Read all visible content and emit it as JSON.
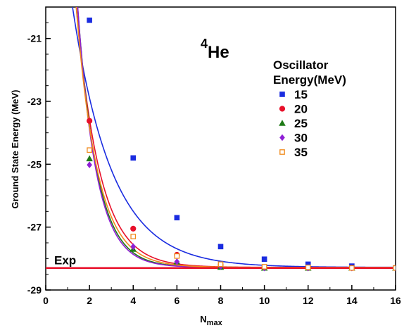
{
  "chart_data": {
    "type": "scatter",
    "title_sup": "4",
    "title_main": "He",
    "xlabel_main": "N",
    "xlabel_sub": "max",
    "ylabel": "Ground State Energy (MeV)",
    "xlim": [
      0,
      16
    ],
    "ylim": [
      -29,
      -20
    ],
    "x_ticks": [
      "0",
      "2",
      "4",
      "6",
      "8",
      "10",
      "12",
      "14",
      "16"
    ],
    "y_ticks": [
      "-21",
      "-23",
      "-25",
      "-27",
      "-29"
    ],
    "legend_title_line1": "Oscillator",
    "legend_title_line2": "Energy(MeV)",
    "legend_position": "top-right",
    "exp_label": "Exp",
    "exp_value": -28.3,
    "exp_color": "#e8102a",
    "series": [
      {
        "name": "15",
        "color": "#1a2ce0",
        "marker": "square",
        "x": [
          2,
          4,
          6,
          8,
          10,
          12,
          14,
          16
        ],
        "y": [
          -20.42,
          -24.8,
          -26.7,
          -27.62,
          -28.02,
          -28.18,
          -28.24,
          -28.3
        ],
        "fit": {
          "a": -28.28,
          "b": 16.3,
          "c": 0.553
        }
      },
      {
        "name": "20",
        "color": "#e8102a",
        "marker": "circle",
        "x": [
          2,
          4,
          6,
          8,
          10,
          12,
          14,
          16
        ],
        "y": [
          -23.62,
          -27.05,
          -27.88,
          -28.2,
          -28.28,
          -28.3,
          -28.3,
          -28.3
        ],
        "fit": {
          "a": -28.28,
          "b": 30.58,
          "c": 0.935
        }
      },
      {
        "name": "25",
        "color": "#1e7a16",
        "marker": "triangle",
        "x": [
          2,
          4,
          6,
          8,
          10,
          12,
          14,
          16
        ],
        "y": [
          -24.82,
          -27.7,
          -28.1,
          -28.27,
          -28.3,
          -28.3,
          -28.3,
          -28.3
        ],
        "fit": {
          "a": -28.28,
          "b": 43.05,
          "c": 1.13
        }
      },
      {
        "name": "30",
        "color": "#8f1fd6",
        "marker": "diamond",
        "x": [
          2,
          4,
          6,
          8,
          10,
          12,
          14,
          16
        ],
        "y": [
          -25.02,
          -27.62,
          -28.1,
          -28.25,
          -28.3,
          -28.3,
          -28.3,
          -28.3
        ],
        "fit": {
          "a": -28.28,
          "b": 46.5,
          "c": 1.18
        }
      },
      {
        "name": "35",
        "color": "#f08a1c",
        "marker": "open-square",
        "x": [
          2,
          4,
          6,
          8,
          10,
          12,
          14,
          16
        ],
        "y": [
          -24.55,
          -27.3,
          -27.92,
          -28.18,
          -28.26,
          -28.28,
          -28.3,
          -28.3
        ],
        "fit": {
          "a": -28.28,
          "b": 34.3,
          "c": 1.02
        }
      }
    ]
  }
}
